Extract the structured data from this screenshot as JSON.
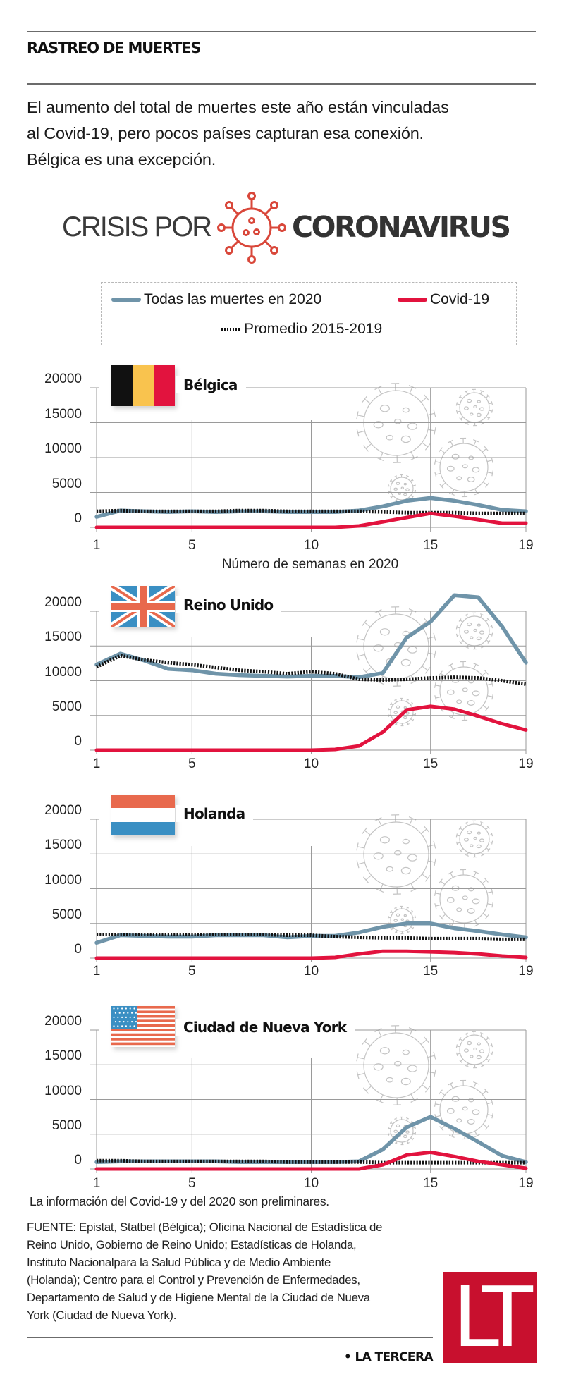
{
  "header": {
    "kicker": "RASTREO DE MUERTES",
    "lede_lines": [
      "El aumento del total de muertes este año están vinculadas",
      "al Covid-19, pero pocos países capturan esa conexión.",
      "Bélgica es una excepción."
    ]
  },
  "brand": {
    "light": "CRISIS POR",
    "bold": "CORONAVIRUS",
    "icon": "virus-icon",
    "color": "#D9473A"
  },
  "colors": {
    "all_deaths": "#6F94A9",
    "covid": "#E2133E",
    "average": "#111111",
    "grid": "#9a9a9a",
    "virus_decoration": "#c4c4c4",
    "logo": "#C8102E"
  },
  "legend": {
    "all_deaths": "Todas las muertes en 2020",
    "covid": "Covid-19",
    "average": "Promedio 2015-2019"
  },
  "chart_data": [
    {
      "type": "line",
      "title": "Bélgica",
      "flag": "belgium-flag",
      "xlabel": "Número de semanas en 2020",
      "ylabel": "",
      "x": [
        1,
        2,
        3,
        4,
        5,
        6,
        7,
        8,
        9,
        10,
        11,
        12,
        13,
        14,
        15,
        16,
        17,
        18,
        19
      ],
      "x_ticks": [
        1,
        5,
        10,
        15,
        19
      ],
      "y_ticks": [
        0,
        5000,
        10000,
        15000,
        20000
      ],
      "ylim": [
        0,
        20000
      ],
      "xlim": [
        1,
        19
      ],
      "grid": true,
      "series": [
        {
          "name": "Todas las muertes en 2020",
          "key": "all_deaths",
          "values": [
            1500,
            2400,
            2300,
            2200,
            2300,
            2200,
            2300,
            2300,
            2200,
            2200,
            2200,
            2400,
            3000,
            3800,
            4200,
            3800,
            3200,
            2500,
            2300
          ]
        },
        {
          "name": "Covid-19",
          "key": "covid",
          "values": [
            0,
            0,
            0,
            0,
            0,
            0,
            0,
            0,
            0,
            0,
            0,
            200,
            800,
            1400,
            2000,
            1600,
            1100,
            600,
            600
          ]
        },
        {
          "name": "Promedio 2015-2019",
          "key": "average",
          "values": [
            2300,
            2400,
            2300,
            2300,
            2300,
            2300,
            2400,
            2400,
            2300,
            2300,
            2300,
            2300,
            2200,
            2100,
            2100,
            2100,
            2000,
            2000,
            2000
          ]
        }
      ]
    },
    {
      "type": "line",
      "title": "Reino Unido",
      "flag": "uk-flag",
      "xlabel": "",
      "ylabel": "",
      "x": [
        1,
        2,
        3,
        4,
        5,
        6,
        7,
        8,
        9,
        10,
        11,
        12,
        13,
        14,
        15,
        16,
        17,
        18,
        19
      ],
      "x_ticks": [
        1,
        5,
        10,
        15,
        19
      ],
      "y_ticks": [
        0,
        5000,
        10000,
        15000,
        20000
      ],
      "ylim": [
        0,
        20000
      ],
      "xlim": [
        1,
        19
      ],
      "grid": true,
      "series": [
        {
          "name": "Todas las muertes en 2020",
          "key": "all_deaths",
          "values": [
            12300,
            13900,
            12900,
            11700,
            11500,
            11000,
            10800,
            10700,
            10600,
            10700,
            10700,
            10500,
            11100,
            16200,
            18500,
            22300,
            22000,
            17800,
            12600
          ]
        },
        {
          "name": "Covid-19",
          "key": "covid",
          "values": [
            0,
            0,
            0,
            0,
            0,
            0,
            0,
            0,
            0,
            0,
            100,
            600,
            2600,
            5800,
            6300,
            5900,
            4900,
            3800,
            2900
          ]
        },
        {
          "name": "Promedio 2015-2019",
          "key": "average",
          "values": [
            12000,
            13600,
            13000,
            12600,
            12300,
            11900,
            11500,
            11300,
            11000,
            11300,
            11000,
            10200,
            10100,
            10200,
            10400,
            10500,
            10400,
            10000,
            9500
          ]
        }
      ]
    },
    {
      "type": "line",
      "title": "Holanda",
      "flag": "netherlands-flag",
      "xlabel": "",
      "ylabel": "",
      "x": [
        1,
        2,
        3,
        4,
        5,
        6,
        7,
        8,
        9,
        10,
        11,
        12,
        13,
        14,
        15,
        16,
        17,
        18,
        19
      ],
      "x_ticks": [
        1,
        5,
        10,
        15,
        19
      ],
      "y_ticks": [
        0,
        5000,
        10000,
        15000,
        20000
      ],
      "ylim": [
        0,
        20000
      ],
      "xlim": [
        1,
        19
      ],
      "grid": true,
      "series": [
        {
          "name": "Todas las muertes en 2020",
          "key": "all_deaths",
          "values": [
            2200,
            3300,
            3200,
            3100,
            3100,
            3300,
            3300,
            3300,
            3000,
            3200,
            3200,
            3700,
            4500,
            5000,
            5000,
            4300,
            3900,
            3400,
            3000
          ]
        },
        {
          "name": "Covid-19",
          "key": "covid",
          "values": [
            0,
            0,
            0,
            0,
            0,
            0,
            0,
            0,
            0,
            0,
            100,
            600,
            1000,
            1000,
            900,
            800,
            600,
            300,
            100
          ]
        },
        {
          "name": "Promedio 2015-2019",
          "key": "average",
          "values": [
            3400,
            3400,
            3400,
            3400,
            3400,
            3400,
            3400,
            3400,
            3300,
            3300,
            3100,
            3000,
            2900,
            2900,
            2800,
            2800,
            2800,
            2700,
            2700
          ]
        }
      ]
    },
    {
      "type": "line",
      "title": "Ciudad de Nueva York",
      "flag": "usa-flag",
      "xlabel": "",
      "ylabel": "",
      "x": [
        1,
        2,
        3,
        4,
        5,
        6,
        7,
        8,
        9,
        10,
        11,
        12,
        13,
        14,
        15,
        16,
        17,
        18,
        19
      ],
      "x_ticks": [
        1,
        5,
        10,
        15,
        19
      ],
      "y_ticks": [
        0,
        5000,
        10000,
        15000,
        20000
      ],
      "ylim": [
        0,
        20000
      ],
      "xlim": [
        1,
        19
      ],
      "grid": true,
      "series": [
        {
          "name": "Todas las muertes en 2020",
          "key": "all_deaths",
          "values": [
            1000,
            1100,
            1100,
            1100,
            1100,
            1100,
            1000,
            1000,
            1000,
            1000,
            1000,
            1100,
            2800,
            6000,
            7500,
            5800,
            3900,
            1900,
            1000
          ]
        },
        {
          "name": "Covid-19",
          "key": "covid",
          "values": [
            0,
            0,
            0,
            0,
            0,
            0,
            0,
            0,
            0,
            0,
            0,
            0,
            600,
            2000,
            2400,
            1800,
            1100,
            600,
            100
          ]
        },
        {
          "name": "Promedio 2015-2019",
          "key": "average",
          "values": [
            1200,
            1200,
            1100,
            1100,
            1100,
            1100,
            1100,
            1100,
            1000,
            1000,
            1000,
            1000,
            900,
            900,
            900,
            900,
            900,
            900,
            900
          ]
        }
      ]
    }
  ],
  "footer": {
    "note": "La información del Covid-19 y del 2020 son preliminares.",
    "source_lines": [
      "FUENTE: Epistat, Statbel (Bélgica); Oficina Nacional de Estadística de",
      "Reino Unido, Gobierno de Reino Unido; Estadísticas de Holanda,",
      "Instituto Nacionalpara la Salud Pública y de Medio Ambiente",
      "(Holanda); Centro para el Control y Prevención de Enfermedades,",
      "Departamento de Salud y de Higiene Mental de la Ciudad de Nueva",
      "York (Ciudad de Nueva York)."
    ],
    "credit": "• LA TERCERA",
    "logo_text": "LT"
  }
}
